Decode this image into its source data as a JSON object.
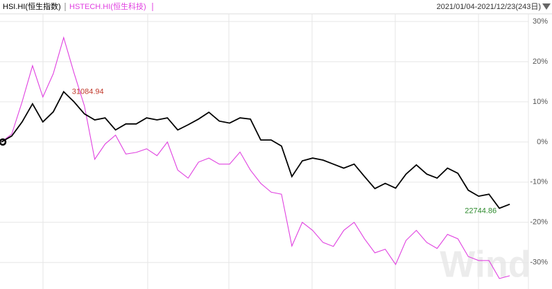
{
  "chart_data": {
    "type": "line",
    "legend_texts": [
      "HSI.HI(恒生指数)",
      "HSTECH.HI(恒生科技)"
    ],
    "date_range": "2021/01/04-2021/12/23(243日)",
    "watermark": "Wind",
    "categories": [
      null,
      null,
      null,
      null,
      null,
      null,
      null,
      null,
      null,
      null,
      null,
      null,
      null,
      null,
      null,
      null,
      null,
      null,
      null,
      null,
      null,
      null,
      null,
      null,
      null,
      null,
      null,
      null,
      null,
      null,
      null,
      null,
      null,
      null,
      null,
      null,
      null,
      null,
      null,
      null,
      null,
      null,
      null,
      null,
      null,
      null,
      null,
      null,
      null,
      null
    ],
    "series": [
      {
        "name": "HSI.HI(恒生指数)",
        "color": "#000000",
        "values": [
          0,
          1.5,
          5,
          9.5,
          5,
          7.5,
          12.5,
          10,
          7,
          5.5,
          6,
          3,
          4.5,
          4.5,
          6,
          5.5,
          6,
          3,
          4.3,
          5.7,
          7.4,
          5.2,
          4.7,
          6,
          5.7,
          0.5,
          0.5,
          -1,
          -8.6,
          -4.7,
          -4,
          -4.5,
          -5.5,
          -6.5,
          -5.5,
          -8.6,
          -11.6,
          -10.3,
          -11.5,
          -8,
          -5.7,
          -8,
          -9,
          -6.5,
          -7.8,
          -12,
          -13.5,
          -13,
          -16.5,
          -15.5
        ]
      },
      {
        "name": "HSTECH.HI(恒生科技)",
        "color": "#e040e0",
        "values": [
          0,
          2,
          10,
          19,
          11.2,
          17,
          26,
          17.2,
          9,
          -4.3,
          -0.5,
          1.7,
          -3,
          -2.6,
          -1.7,
          -3.4,
          0,
          -7,
          -9,
          -5,
          -4,
          -5.5,
          -5.5,
          -2.5,
          -7,
          -10.3,
          -12.5,
          -13,
          -25.9,
          -20,
          -22,
          -25,
          -26,
          -22,
          -20,
          -24.1,
          -27.6,
          -26.7,
          -30.5,
          -24.5,
          -22,
          -25,
          -26.5,
          -23,
          -24.1,
          -28.5,
          -29.5,
          -29.5,
          -34,
          -33.3
        ]
      }
    ],
    "annotations": [
      {
        "text": "31084.94",
        "color": "#c0392b",
        "series": 0,
        "index": 6
      },
      {
        "text": "22744.86",
        "color": "#2e8b2e",
        "series": 0,
        "index": 48
      }
    ],
    "ylim": [
      -36.6,
      31.9
    ],
    "yticks": [
      {
        "value": -30,
        "label": "-30%"
      },
      {
        "value": -20,
        "label": "-20%"
      },
      {
        "value": -10,
        "label": "-10%"
      },
      {
        "value": 0,
        "label": "0%"
      },
      {
        "value": 10,
        "label": "10%"
      },
      {
        "value": 20,
        "label": "20%"
      },
      {
        "value": 30,
        "label": "30%"
      }
    ],
    "grid": true
  }
}
